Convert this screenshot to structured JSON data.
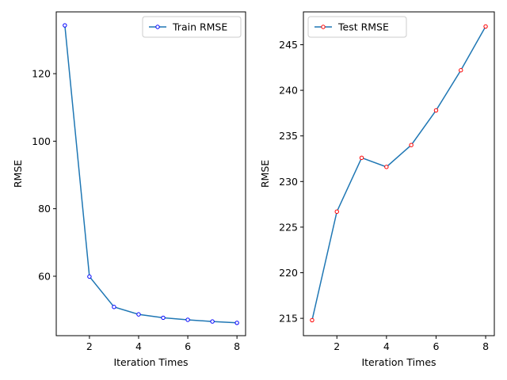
{
  "chart_data": [
    {
      "type": "line",
      "title": "",
      "xlabel": "Iteration Times",
      "ylabel": "RMSE",
      "x": [
        1,
        2,
        3,
        4,
        5,
        6,
        7,
        8
      ],
      "xlim": [
        0.65,
        8.35
      ],
      "ylim": [
        42.4,
        138.3
      ],
      "xticks": [
        2,
        4,
        6,
        8
      ],
      "yticks": [
        60,
        80,
        100,
        120
      ],
      "grid": false,
      "legend_position": "top-right",
      "series": [
        {
          "name": "Train RMSE",
          "values": [
            134.3,
            59.9,
            50.9,
            48.7,
            47.7,
            47.1,
            46.6,
            46.2
          ],
          "line_color": "#1f77b4",
          "marker_edge_color": "#0000ff"
        }
      ]
    },
    {
      "type": "line",
      "title": "",
      "xlabel": "Iteration Times",
      "ylabel": "RMSE",
      "x": [
        1,
        2,
        3,
        4,
        5,
        6,
        7,
        8
      ],
      "xlim": [
        0.65,
        8.35
      ],
      "ylim": [
        213.1,
        248.6
      ],
      "xticks": [
        2,
        4,
        6,
        8
      ],
      "yticks": [
        215,
        220,
        225,
        230,
        235,
        240,
        245
      ],
      "grid": false,
      "legend_position": "top-left",
      "series": [
        {
          "name": "Test RMSE",
          "values": [
            214.8,
            226.7,
            232.6,
            231.6,
            234.0,
            237.8,
            242.2,
            247.0
          ],
          "line_color": "#1f77b4",
          "marker_edge_color": "#ff0000"
        }
      ]
    }
  ]
}
